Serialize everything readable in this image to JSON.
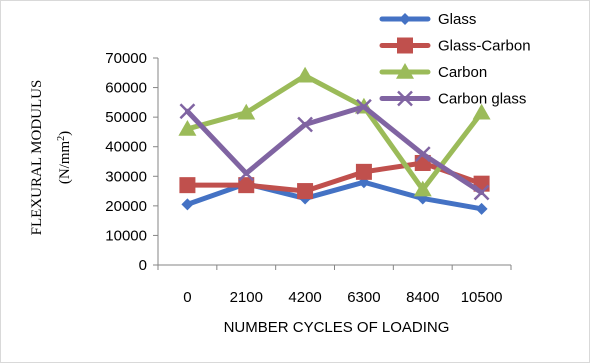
{
  "chart_data": {
    "type": "line",
    "categories": [
      "0",
      "2100",
      "4200",
      "6300",
      "8400",
      "10500"
    ],
    "series": [
      {
        "name": "Glass",
        "values": [
          20500,
          27500,
          22500,
          28000,
          22500,
          19000
        ],
        "color": "#4472c4",
        "marker": "diamond"
      },
      {
        "name": "Glass-Carbon",
        "values": [
          27000,
          27000,
          25000,
          31500,
          34500,
          27500
        ],
        "color": "#c0504d",
        "marker": "square"
      },
      {
        "name": "Carbon",
        "values": [
          46000,
          51500,
          64000,
          53500,
          25500,
          51500
        ],
        "color": "#9bbb59",
        "marker": "triangle"
      },
      {
        "name": "Carbon glass",
        "values": [
          52000,
          31000,
          47500,
          53500,
          37500,
          24500
        ],
        "color": "#8064a2",
        "marker": "x"
      }
    ],
    "ylim": [
      0,
      70000
    ],
    "yticks": [
      "0",
      "10000",
      "20000",
      "30000",
      "40000",
      "50000",
      "60000",
      "70000"
    ],
    "xlabel": "NUMBER CYCLES OF LOADING",
    "ylabel_line1": "FLEXURAL MODULUS",
    "ylabel_line2_prefix": "(N/mm",
    "ylabel_line2_sup": "2",
    "ylabel_line2_suffix": ")",
    "grid": false,
    "legend_position": "top-right"
  }
}
